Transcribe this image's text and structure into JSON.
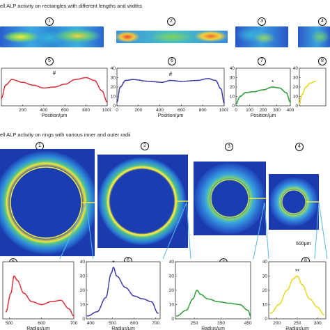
{
  "section_a": {
    "title": "ell ALP activity on rectangles with different lengths and widths",
    "panel_numbers": [
      "1",
      "2",
      "3",
      "4",
      "5",
      "6",
      "7",
      "8"
    ],
    "plots": [
      {
        "color": "#d9303a",
        "marker": "#",
        "x_label": "Position/μm",
        "x_ticks": [
          "200",
          "400",
          "600",
          "800",
          "1000"
        ],
        "x_range": [
          0,
          1000
        ],
        "y_range": [
          0,
          40
        ],
        "y_ticks": [],
        "profile": [
          [
            0,
            8
          ],
          [
            40,
            22
          ],
          [
            100,
            28
          ],
          [
            200,
            25
          ],
          [
            300,
            22
          ],
          [
            400,
            19
          ],
          [
            500,
            20
          ],
          [
            600,
            23
          ],
          [
            700,
            28
          ],
          [
            800,
            30
          ],
          [
            880,
            27
          ],
          [
            950,
            16
          ],
          [
            1000,
            4
          ]
        ]
      },
      {
        "color": "#3c3aa8",
        "marker": "#",
        "x_label": "Position/μm",
        "x_ticks": [
          "0",
          "200",
          "400",
          "600",
          "800",
          "1000"
        ],
        "x_range": [
          0,
          1000
        ],
        "y_range": [
          0,
          40
        ],
        "y_ticks": [
          "0",
          "10",
          "20",
          "30",
          "40"
        ],
        "profile": [
          [
            0,
            4
          ],
          [
            30,
            20
          ],
          [
            80,
            27
          ],
          [
            150,
            28
          ],
          [
            300,
            26
          ],
          [
            420,
            25
          ],
          [
            500,
            27
          ],
          [
            600,
            26
          ],
          [
            750,
            27
          ],
          [
            850,
            29
          ],
          [
            920,
            27
          ],
          [
            970,
            18
          ],
          [
            1000,
            3
          ]
        ]
      },
      {
        "color": "#2e9e3a",
        "marker": "*",
        "x_label": "Position/μm",
        "x_ticks": [
          "0",
          "100",
          "200",
          "300",
          "400"
        ],
        "x_range": [
          0,
          400
        ],
        "y_range": [
          0,
          40
        ],
        "y_ticks": [
          "0",
          "10",
          "20",
          "30",
          "40"
        ],
        "profile": [
          [
            0,
            2
          ],
          [
            30,
            10
          ],
          [
            70,
            14
          ],
          [
            130,
            15
          ],
          [
            200,
            17
          ],
          [
            270,
            20
          ],
          [
            320,
            19
          ],
          [
            370,
            14
          ],
          [
            400,
            4
          ]
        ]
      },
      {
        "color": "#e6d81a",
        "marker": "",
        "x_label": "",
        "x_ticks": [],
        "x_range": [
          0,
          200
        ],
        "y_range": [
          0,
          40
        ],
        "y_ticks": [
          "0",
          "10",
          "20",
          "30",
          "40"
        ],
        "profile": [
          [
            0,
            2
          ],
          [
            20,
            12
          ],
          [
            50,
            20
          ],
          [
            80,
            24
          ],
          [
            120,
            26
          ]
        ]
      }
    ]
  },
  "section_b": {
    "title": "ell ALP activity on rings with various inner and outer radii",
    "panel_numbers": [
      "1",
      "2",
      "3",
      "4",
      "5",
      "6",
      "7",
      "8"
    ],
    "scale_bar_label": "500μm",
    "plots": [
      {
        "color": "#d9303a",
        "marker": "",
        "x_label": "Radius/μm",
        "x_ticks": [
          "500",
          "600",
          "700"
        ],
        "x_range": [
          480,
          700
        ],
        "y_range": [
          0,
          40
        ],
        "y_ticks": [],
        "profile": [
          [
            490,
            5
          ],
          [
            505,
            18
          ],
          [
            515,
            30
          ],
          [
            525,
            27
          ],
          [
            545,
            18
          ],
          [
            570,
            12
          ],
          [
            600,
            10
          ],
          [
            630,
            12
          ],
          [
            660,
            13
          ],
          [
            685,
            7
          ],
          [
            700,
            2
          ]
        ]
      },
      {
        "color": "#3c3aa8",
        "marker": "*",
        "x_label": "Radius/μm",
        "x_ticks": [
          "400",
          "500",
          "600",
          "700"
        ],
        "x_range": [
          380,
          720
        ],
        "y_range": [
          0,
          40
        ],
        "y_ticks": [
          "0",
          "10",
          "20",
          "30",
          "40"
        ],
        "profile": [
          [
            385,
            2
          ],
          [
            430,
            5
          ],
          [
            470,
            15
          ],
          [
            495,
            32
          ],
          [
            505,
            36
          ],
          [
            520,
            30
          ],
          [
            560,
            22
          ],
          [
            600,
            16
          ],
          [
            640,
            14
          ],
          [
            680,
            12
          ],
          [
            710,
            4
          ]
        ]
      },
      {
        "color": "#2e9e3a",
        "marker": "",
        "x_label": "Radius/μm",
        "x_ticks": [
          "250",
          "350",
          "450"
        ],
        "x_range": [
          180,
          460
        ],
        "y_range": [
          0,
          40
        ],
        "y_ticks": [
          "0",
          "10",
          "20",
          "30",
          "40"
        ],
        "profile": [
          [
            185,
            2
          ],
          [
            220,
            6
          ],
          [
            245,
            14
          ],
          [
            260,
            20
          ],
          [
            275,
            17
          ],
          [
            300,
            14
          ],
          [
            340,
            12
          ],
          [
            380,
            11
          ],
          [
            420,
            10
          ],
          [
            450,
            6
          ],
          [
            460,
            2
          ]
        ]
      },
      {
        "color": "#e6d81a",
        "marker": "**",
        "x_label": "Radius/μm",
        "x_ticks": [
          "200",
          "250",
          "300"
        ],
        "x_range": [
          180,
          320
        ],
        "y_range": [
          0,
          40
        ],
        "y_ticks": [
          "0",
          "10",
          "20",
          "30",
          "40"
        ],
        "profile": [
          [
            185,
            4
          ],
          [
            205,
            10
          ],
          [
            225,
            20
          ],
          [
            240,
            28
          ],
          [
            250,
            30
          ],
          [
            262,
            24
          ],
          [
            280,
            14
          ],
          [
            300,
            8
          ],
          [
            315,
            3
          ]
        ]
      }
    ]
  }
}
